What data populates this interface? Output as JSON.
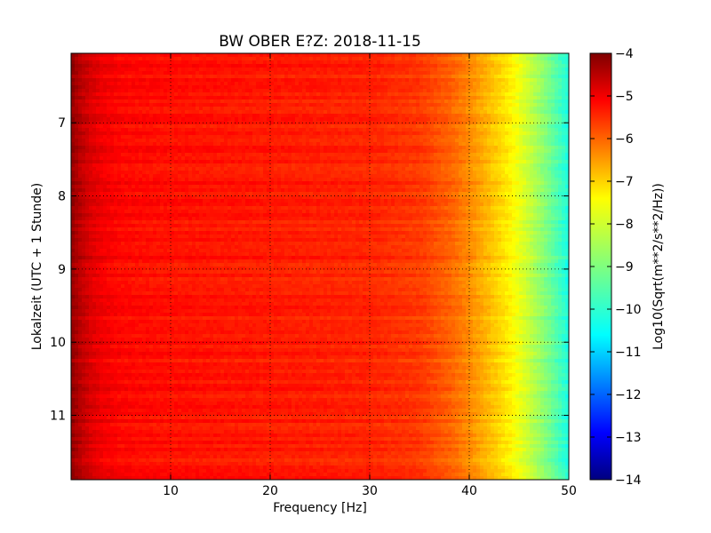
{
  "chart_data": {
    "type": "heatmap",
    "title": "BW OBER E?Z: 2018-11-15",
    "xlabel": "Frequency [Hz]",
    "ylabel": "Lokalzeit (UTC + 1 Stunde)",
    "colorbar_label": "Log10(Sqrt(m**2/s**2/Hz))",
    "xlim": [
      0,
      50
    ],
    "ylim": [
      11.88,
      6.05
    ],
    "y_inverted": true,
    "x_ticks": [
      10,
      20,
      30,
      40,
      50
    ],
    "x_tick_labels": [
      "10",
      "20",
      "30",
      "40",
      "50"
    ],
    "y_ticks": [
      7,
      8,
      9,
      10,
      11
    ],
    "y_tick_labels": [
      "7",
      "8",
      "9",
      "10",
      "11"
    ],
    "color_range": [
      -14,
      -4
    ],
    "colorbar_ticks": [
      -4,
      -5,
      -6,
      -7,
      -8,
      -9,
      -10,
      -11,
      -12,
      -13,
      -14
    ],
    "colorbar_tick_labels": [
      "−4",
      "−5",
      "−6",
      "−7",
      "−8",
      "−9",
      "−10",
      "−11",
      "−12",
      "−13",
      "−14"
    ],
    "colormap": "jet",
    "grid": true,
    "grid_style": "dotted",
    "frequency_profile": {
      "frequency_hz": [
        0,
        1,
        2,
        3,
        5,
        10,
        20,
        30,
        35,
        38,
        40,
        42,
        44,
        46,
        48,
        50
      ],
      "log10_amplitude": [
        -4.2,
        -4.6,
        -4.9,
        -5.1,
        -5.3,
        -5.4,
        -5.5,
        -5.6,
        -5.8,
        -6.2,
        -6.6,
        -7.1,
        -7.6,
        -8.3,
        -9.1,
        -10.0
      ]
    },
    "series": []
  }
}
